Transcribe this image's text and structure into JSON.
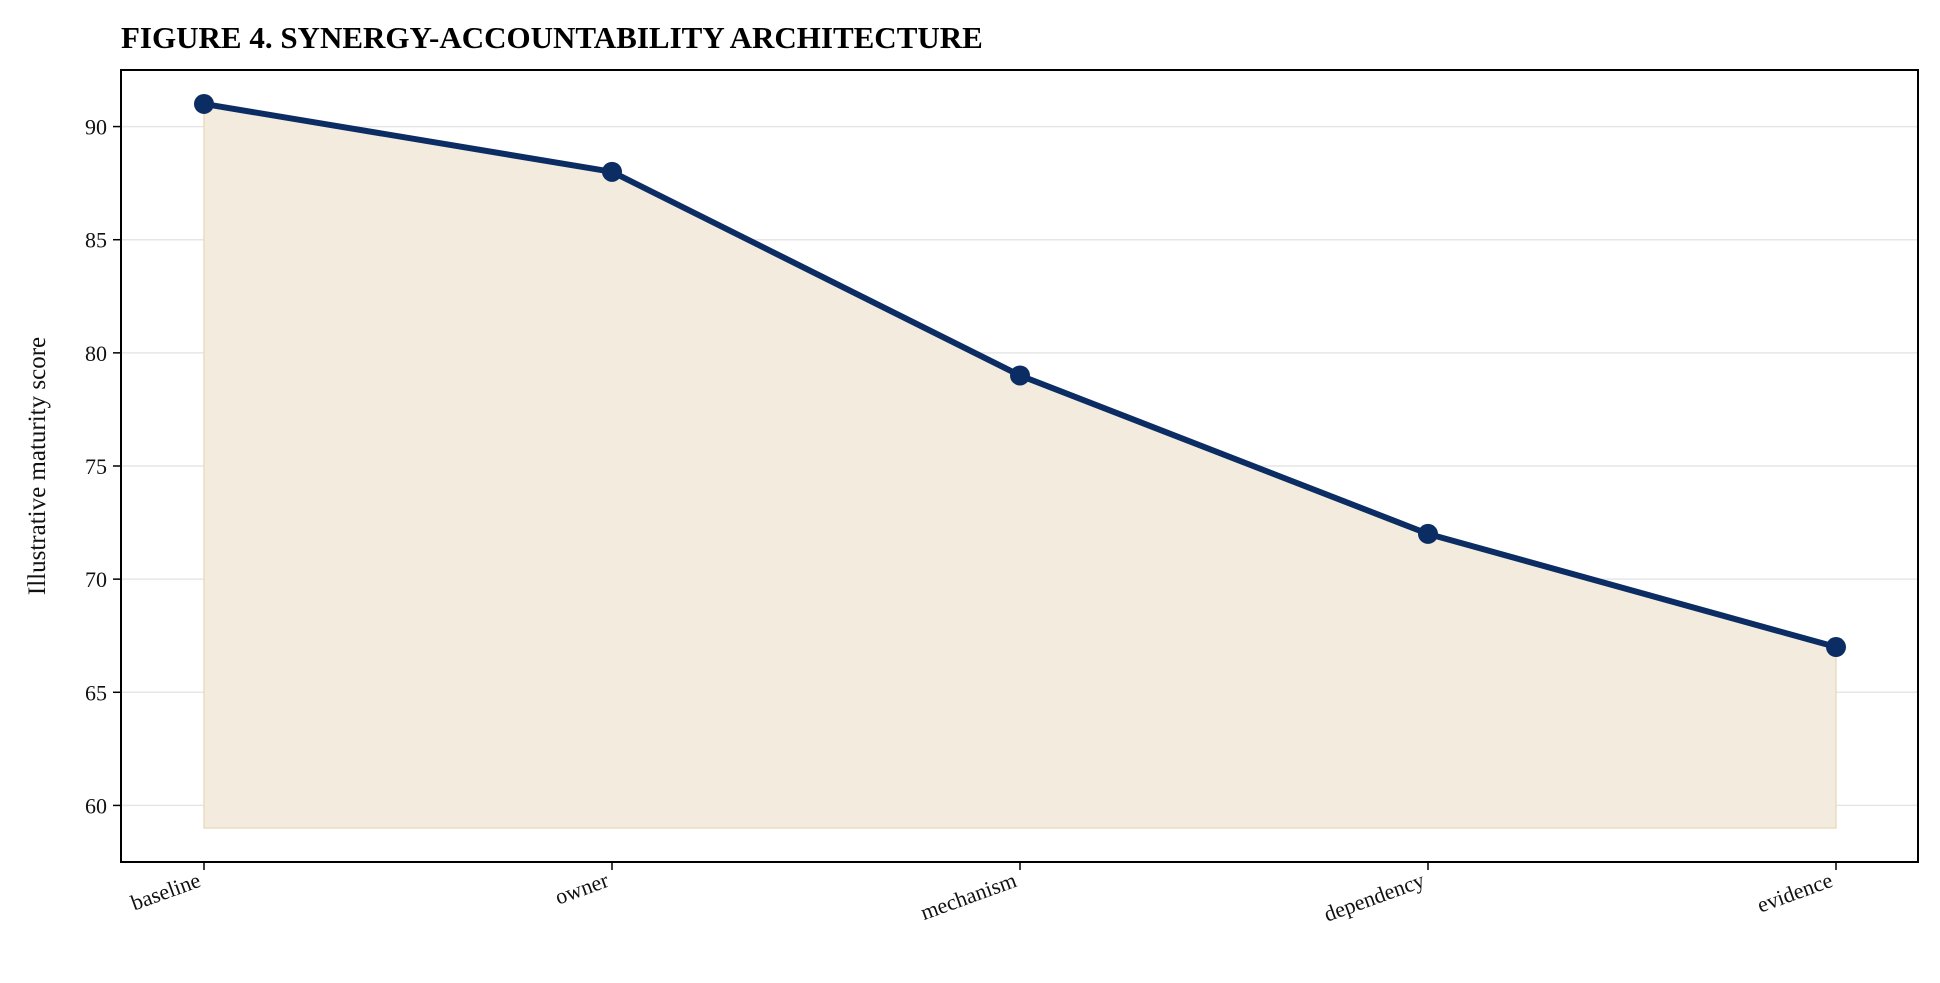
{
  "chart_data": {
    "type": "area",
    "title": "FIGURE 4. SYNERGY-ACCOUNTABILITY ARCHITECTURE",
    "xlabel": "",
    "ylabel": "Illustrative maturity score",
    "categories": [
      "baseline",
      "owner",
      "mechanism",
      "dependency",
      "evidence"
    ],
    "series": [
      {
        "values": [
          91,
          88,
          79,
          72,
          67
        ]
      }
    ],
    "fill_baseline": 59,
    "ylim": [
      57.5,
      92.5
    ],
    "yticks": [
      60,
      65,
      70,
      75,
      80,
      85,
      90
    ],
    "grid": "horizontal",
    "colors": {
      "line": "#0b2d64",
      "marker": "#0b2d64",
      "fill": "#f3ecde",
      "fill_edge": "#eadcc0",
      "grid": "#e6e6e6"
    }
  }
}
